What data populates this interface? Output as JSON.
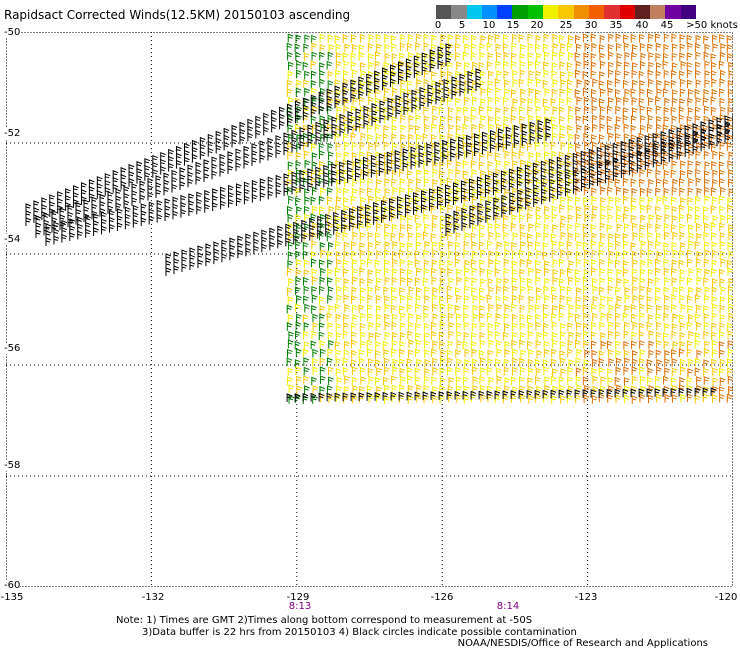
{
  "title": "Rapidsact Corrected Winds(12.5KM) 20150103 ascending",
  "colorbar": {
    "labels": [
      "0",
      "5",
      "10",
      "15",
      "20",
      "25",
      "30",
      "35",
      "40",
      "45",
      ">50 knots"
    ],
    "colors": [
      "#555555",
      "#888888",
      "#00c8f0",
      "#0090ff",
      "#0040ff",
      "#00a000",
      "#00c000",
      "#f0f000",
      "#f8c800",
      "#f09000",
      "#f06000",
      "#e03030",
      "#e00000",
      "#602020",
      "#c08060",
      "#7000a0",
      "#400080"
    ]
  },
  "axes": {
    "x_ticks": [
      "-135",
      "-132",
      "-129",
      "-126",
      "-123",
      "-120"
    ],
    "y_ticks": [
      "-50",
      "-52",
      "-54",
      "-56",
      "-58",
      "-60"
    ]
  },
  "time_labels": [
    "8:13",
    "8:14"
  ],
  "note_lines": [
    "Note: 1) Times are GMT 2)Times along bottom correspond to measurement at -50S",
    "3)Data buffer is 22 hrs from 20150103 4) Black circles indicate possible contamination"
  ],
  "credit": "NOAA/NESDIS/Office of Research and Applications",
  "map": {
    "lon_range": [
      -135,
      -120
    ],
    "lat_range": [
      -50,
      -60
    ],
    "swath_lat_range": [
      -50,
      -56.7
    ],
    "swath_lon_start": -129.2,
    "wind_colors": {
      "calm": "#000000",
      "moderate": "#008000",
      "fresh": "#f0f000",
      "strong": "#f8c800",
      "gale": "#e07000"
    }
  }
}
